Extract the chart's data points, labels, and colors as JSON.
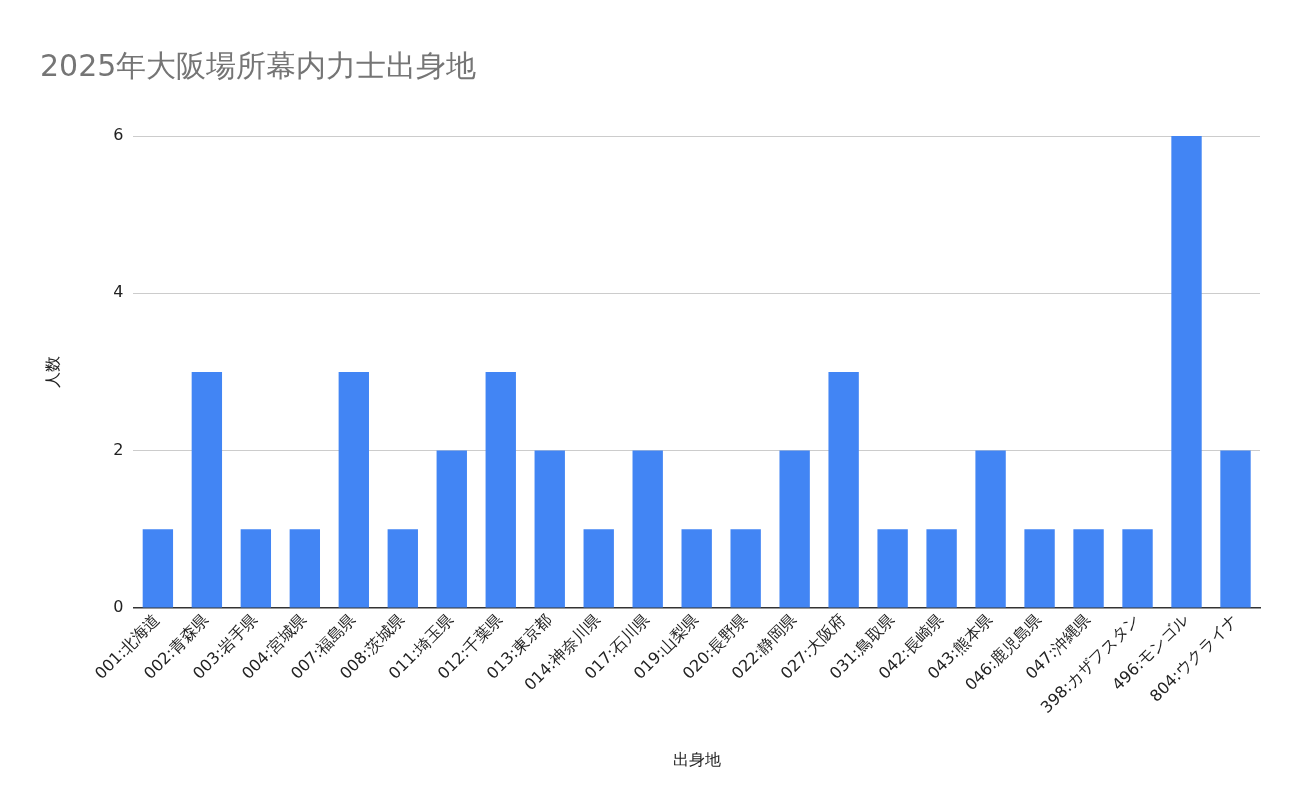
{
  "chart_data": {
    "type": "bar",
    "title": "2025年大阪場所幕内力士出身地",
    "xlabel": "出身地",
    "ylabel": "人数",
    "categories": [
      "001:北海道",
      "002:青森県",
      "003:岩手県",
      "004:宮城県",
      "007:福島県",
      "008:茨城県",
      "011:埼玉県",
      "012:千葉県",
      "013:東京都",
      "014:神奈川県",
      "017:石川県",
      "019:山梨県",
      "020:長野県",
      "022:静岡県",
      "027:大阪府",
      "031:鳥取県",
      "042:長崎県",
      "043:熊本県",
      "046:鹿児島県",
      "047:沖縄県",
      "398:カザフスタン",
      "496:モンゴル",
      "804:ウクライナ"
    ],
    "values": [
      1,
      3,
      1,
      1,
      3,
      1,
      2,
      3,
      2,
      1,
      2,
      1,
      1,
      2,
      3,
      1,
      1,
      2,
      1,
      1,
      1,
      6,
      2
    ],
    "color": "#4285f4",
    "ylim": [
      0,
      6
    ],
    "yticks": [
      0,
      2,
      4,
      6
    ],
    "grid": "y"
  }
}
